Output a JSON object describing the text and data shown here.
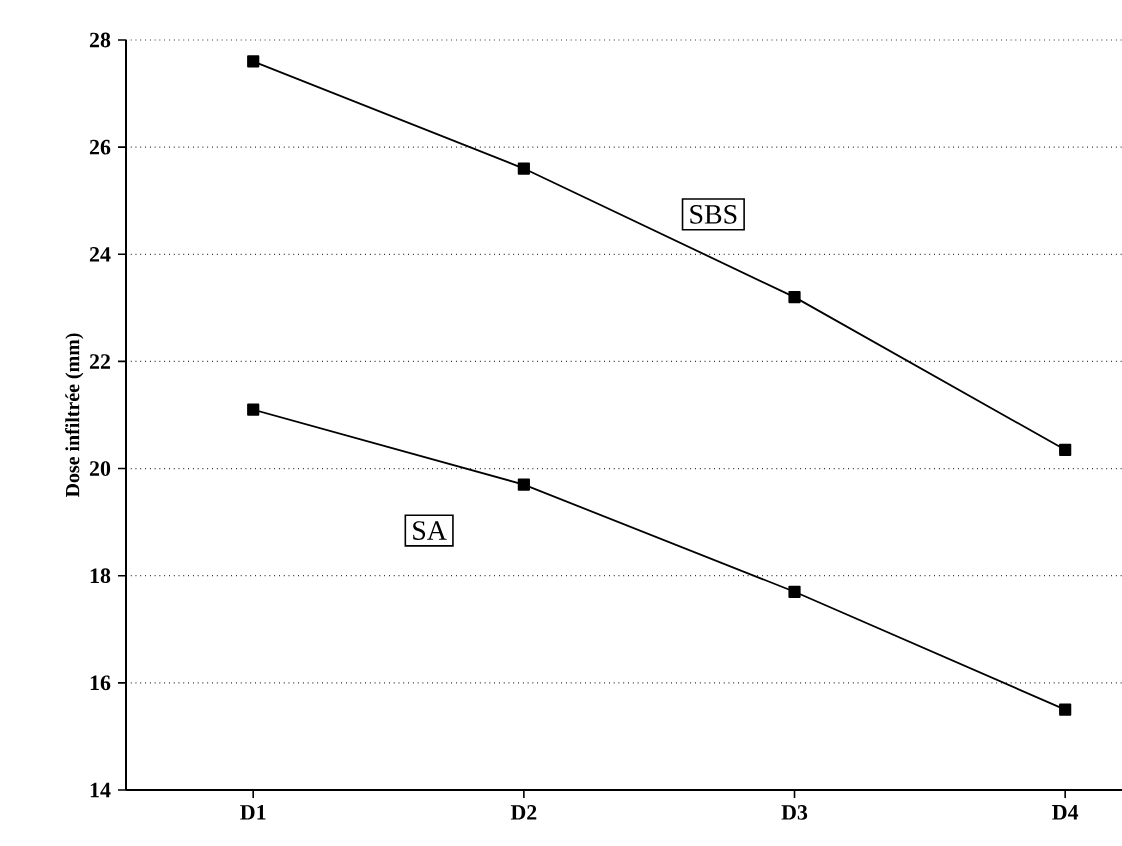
{
  "chart_data": {
    "type": "line",
    "ylabel": "Dose infiltrée (mm)",
    "categories": [
      "D1",
      "D2",
      "D3",
      "D4"
    ],
    "series": [
      {
        "name": "SBS",
        "color": "#000000",
        "values": [
          27.6,
          25.6,
          23.2,
          20.35
        ]
      },
      {
        "name": "SA",
        "color": "#000000",
        "values": [
          21.1,
          19.7,
          17.7,
          15.5
        ]
      }
    ],
    "ylim": [
      14,
      28
    ],
    "yticks": [
      14,
      16,
      18,
      20,
      22,
      24,
      26,
      28
    ],
    "grid": "y",
    "marker": "square",
    "line_style": "solid",
    "legend": false
  }
}
